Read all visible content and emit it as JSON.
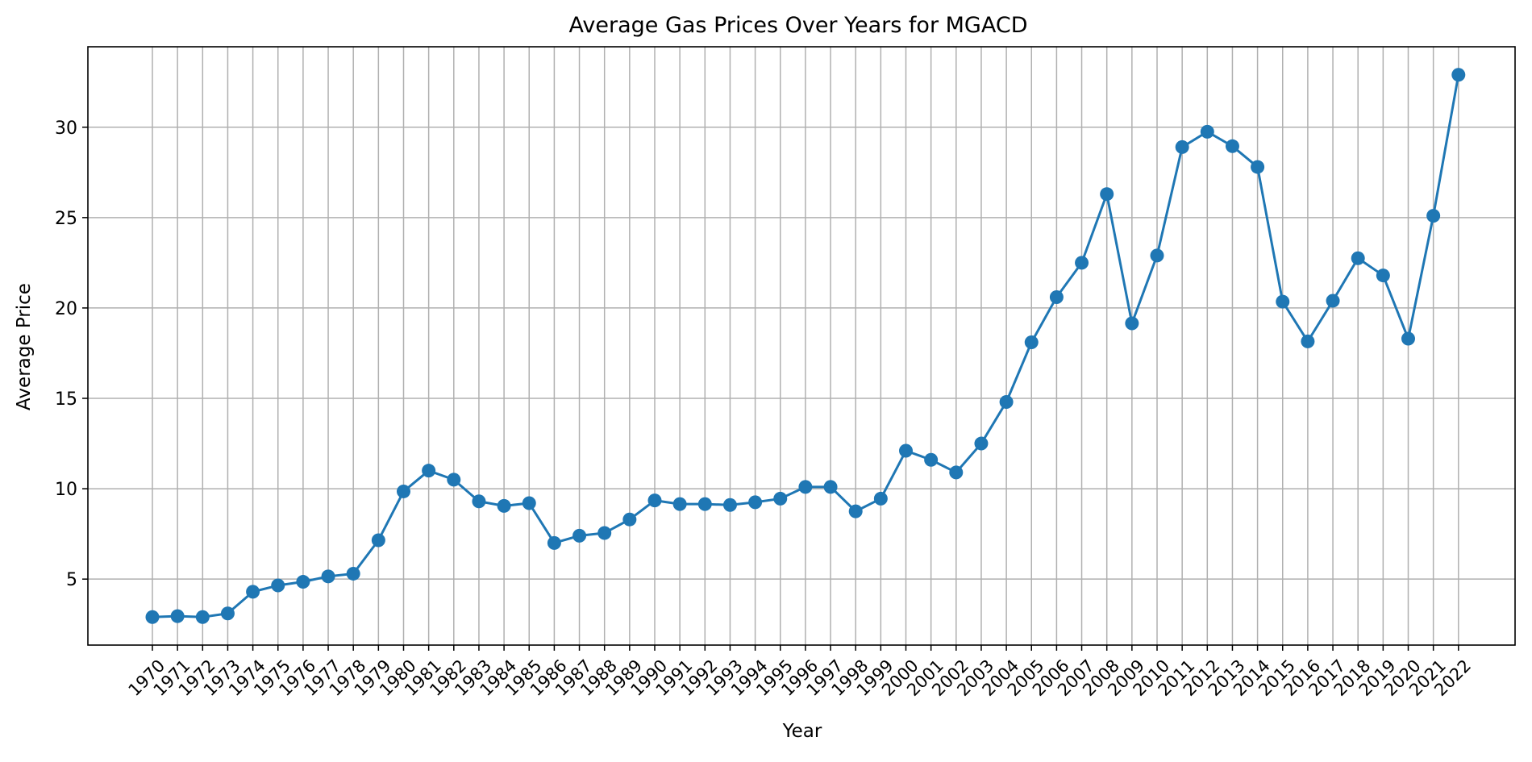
{
  "chart_data": {
    "type": "line",
    "title": "Average Gas Prices Over Years for MGACD",
    "xlabel": "Year",
    "ylabel": "Average Price",
    "categories": [
      "1970",
      "1971",
      "1972",
      "1973",
      "1974",
      "1975",
      "1976",
      "1977",
      "1978",
      "1979",
      "1980",
      "1981",
      "1982",
      "1983",
      "1984",
      "1985",
      "1986",
      "1987",
      "1988",
      "1989",
      "1990",
      "1991",
      "1992",
      "1993",
      "1994",
      "1995",
      "1996",
      "1997",
      "1998",
      "1999",
      "2000",
      "2001",
      "2002",
      "2003",
      "2004",
      "2005",
      "2006",
      "2007",
      "2008",
      "2009",
      "2010",
      "2011",
      "2012",
      "2013",
      "2014",
      "2015",
      "2016",
      "2017",
      "2018",
      "2019",
      "2020",
      "2021",
      "2022"
    ],
    "values": [
      2.9,
      2.95,
      2.9,
      3.1,
      4.3,
      4.65,
      4.85,
      5.15,
      5.3,
      7.15,
      9.85,
      11.0,
      10.5,
      9.3,
      9.05,
      9.2,
      7.0,
      7.4,
      7.55,
      8.3,
      9.35,
      9.15,
      9.15,
      9.1,
      9.25,
      9.45,
      10.1,
      10.1,
      8.75,
      9.45,
      12.1,
      11.6,
      10.9,
      12.5,
      14.8,
      18.1,
      20.6,
      22.5,
      26.3,
      19.15,
      22.9,
      28.9,
      29.75,
      28.95,
      27.8,
      20.35,
      18.15,
      20.4,
      22.75,
      21.8,
      18.3,
      25.1,
      32.9
    ],
    "yticks": [
      5,
      10,
      15,
      20,
      25,
      30
    ],
    "ylim": [
      1.35,
      34.45
    ],
    "grid": true,
    "xtick_rotation": 45,
    "colors": {
      "line": "#1f77b4",
      "grid": "#b0b0b0",
      "axes": "#000000"
    }
  }
}
